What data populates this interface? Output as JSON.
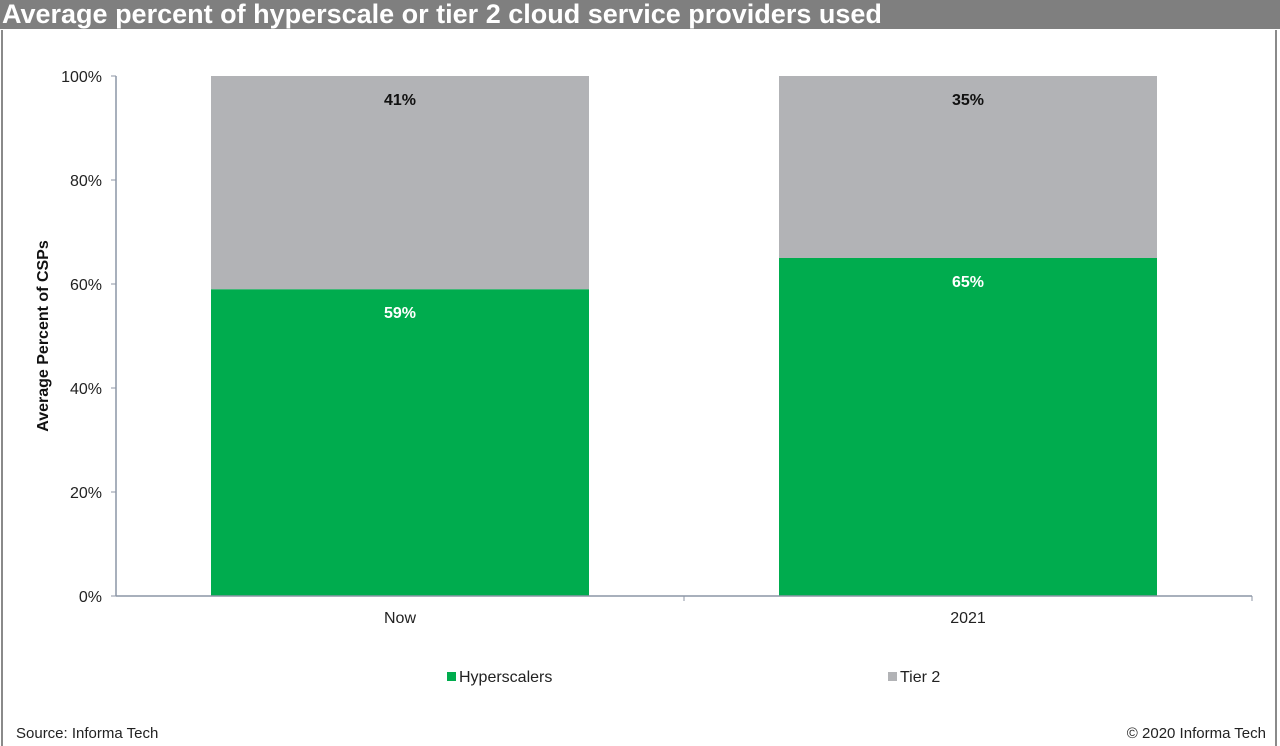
{
  "title": "Average percent of hyperscale or tier 2 cloud service providers used",
  "chart_data": {
    "type": "bar",
    "stacked": true,
    "categories": [
      "Now",
      "2021"
    ],
    "series": [
      {
        "name": "Hyperscalers",
        "values": [
          59,
          65
        ],
        "labels": [
          "59%",
          "65%"
        ],
        "color": "#00ac4e"
      },
      {
        "name": "Tier 2",
        "values": [
          41,
          35
        ],
        "labels": [
          "41%",
          "35%"
        ],
        "color": "#b2b3b6"
      }
    ],
    "ylabel": "Average Percent of CSPs",
    "xlabel": "",
    "ylim": [
      0,
      100
    ],
    "yticks": [
      "0%",
      "20%",
      "40%",
      "60%",
      "80%",
      "100%"
    ],
    "grid": false,
    "legend": "bottom"
  },
  "footer": {
    "source": "Source: Informa Tech",
    "copyright": "© 2020 Informa Tech"
  }
}
